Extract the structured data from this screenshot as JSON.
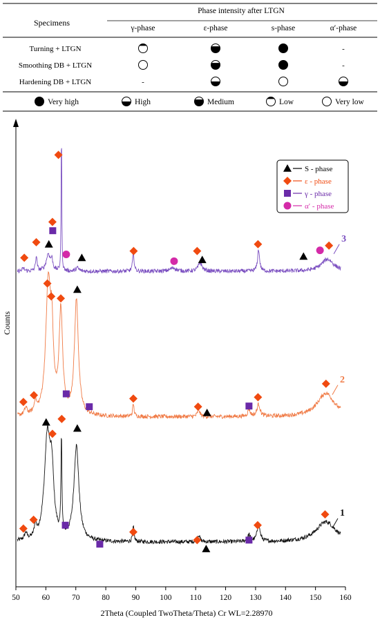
{
  "table": {
    "specimens_header": "Specimens",
    "group_header": "Phase intensity after LTGN",
    "phase_headers": [
      "γ-phase",
      "ε-phase",
      "s-phase",
      "α′-phase"
    ],
    "rows": [
      {
        "label": "Turning + LTGN",
        "cells": [
          "low",
          "medium",
          "very-high",
          "-"
        ]
      },
      {
        "label": "Smoothing DB + LTGN",
        "cells": [
          "very-low",
          "medium",
          "very-high",
          "-"
        ]
      },
      {
        "label": "Hardening DB + LTGN",
        "cells": [
          "-",
          "high",
          "very-low",
          "high"
        ]
      }
    ],
    "legend": [
      {
        "level": "very-high",
        "label": "Very high"
      },
      {
        "level": "high",
        "label": "High"
      },
      {
        "level": "medium",
        "label": "Medium"
      },
      {
        "level": "low",
        "label": "Low"
      },
      {
        "level": "very-low",
        "label": "Very low"
      }
    ]
  },
  "colors": {
    "s_phase": "#000000",
    "epsilon": "#f04a10",
    "gamma": "#6a2aa8",
    "alpha": "#d42aa8",
    "curve1": "#111111",
    "curve2": "#f07a45",
    "curve3": "#7a4ec0"
  },
  "chart_data": {
    "type": "line",
    "xlabel": "2Theta (Coupled TwoTheta/Theta) Cr WL=2.28970",
    "ylabel": "Counts",
    "xlim": [
      50,
      160
    ],
    "xticks": [
      50,
      60,
      70,
      80,
      90,
      100,
      110,
      120,
      130,
      140,
      150,
      160
    ],
    "legend": [
      {
        "marker": "triangle",
        "label": "S - phase",
        "color": "#000000"
      },
      {
        "marker": "diamond",
        "label": "ε - phase",
        "color": "#f04a10"
      },
      {
        "marker": "square",
        "label": "γ - phase",
        "color": "#6a2aa8"
      },
      {
        "marker": "circle",
        "label": "α′ - phase",
        "color": "#d42aa8"
      }
    ],
    "series": [
      {
        "name": "1",
        "color": "#111111",
        "baseline": 15,
        "noise": 3,
        "peaks": [
          {
            "x": 53.3,
            "h": 10,
            "w": 0.5
          },
          {
            "x": 56.5,
            "h": 18,
            "w": 0.4
          },
          {
            "x": 60.5,
            "h": 150,
            "w": 1.2
          },
          {
            "x": 62.0,
            "h": 80,
            "w": 0.8
          },
          {
            "x": 65.2,
            "h": 150,
            "w": 0.18
          },
          {
            "x": 70.2,
            "h": 140,
            "w": 1.0
          },
          {
            "x": 89.2,
            "h": 22,
            "w": 0.3
          },
          {
            "x": 111.0,
            "h": 10,
            "w": 0.5
          },
          {
            "x": 127.8,
            "h": 10,
            "w": 0.5
          },
          {
            "x": 131.0,
            "h": 25,
            "w": 0.6
          },
          {
            "x": 153.5,
            "h": 30,
            "w": 4.0
          }
        ],
        "markers": [
          {
            "type": "diamond",
            "x": 52.5,
            "y": 35
          },
          {
            "type": "diamond",
            "x": 55.9,
            "y": 48
          },
          {
            "type": "triangle",
            "x": 60.1,
            "y": 192
          },
          {
            "type": "diamond",
            "x": 62.2,
            "y": 175
          },
          {
            "type": "diamond",
            "x": 65.3,
            "y": 197
          },
          {
            "type": "triangle",
            "x": 70.5,
            "y": 183
          },
          {
            "type": "square",
            "x": 66.5,
            "y": 40
          },
          {
            "type": "square",
            "x": 78.0,
            "y": 12
          },
          {
            "type": "diamond",
            "x": 89.2,
            "y": 30
          },
          {
            "type": "diamond",
            "x": 110.5,
            "y": 18
          },
          {
            "type": "triangle",
            "x": 113.5,
            "y": 5
          },
          {
            "type": "square",
            "x": 127.8,
            "y": 18
          },
          {
            "type": "diamond",
            "x": 130.7,
            "y": 40
          },
          {
            "type": "diamond",
            "x": 153.2,
            "y": 56
          }
        ],
        "label": {
          "text": "1",
          "x": 157.0,
          "y": 50
        }
      },
      {
        "name": "2",
        "color": "#f07a45",
        "baseline": 200,
        "noise": 3,
        "peaks": [
          {
            "x": 53.3,
            "h": 10,
            "w": 0.5
          },
          {
            "x": 56.5,
            "h": 18,
            "w": 0.4
          },
          {
            "x": 60.8,
            "h": 190,
            "w": 1.0
          },
          {
            "x": 62.0,
            "h": 90,
            "w": 0.6
          },
          {
            "x": 65.0,
            "h": 150,
            "w": 0.7
          },
          {
            "x": 70.2,
            "h": 170,
            "w": 0.8
          },
          {
            "x": 89.2,
            "h": 18,
            "w": 0.3
          },
          {
            "x": 111.0,
            "h": 10,
            "w": 0.5
          },
          {
            "x": 127.8,
            "h": 10,
            "w": 0.5
          },
          {
            "x": 131.0,
            "h": 18,
            "w": 0.6
          },
          {
            "x": 153.5,
            "h": 35,
            "w": 3.5
          }
        ],
        "markers": [
          {
            "type": "diamond",
            "x": 52.5,
            "y": 222
          },
          {
            "type": "diamond",
            "x": 56.0,
            "y": 232
          },
          {
            "type": "diamond",
            "x": 60.5,
            "y": 397
          },
          {
            "type": "diamond",
            "x": 61.8,
            "y": 378
          },
          {
            "type": "diamond",
            "x": 65.0,
            "y": 375
          },
          {
            "type": "triangle",
            "x": 70.5,
            "y": 388
          },
          {
            "type": "square",
            "x": 66.8,
            "y": 234
          },
          {
            "type": "square",
            "x": 74.5,
            "y": 215
          },
          {
            "type": "diamond",
            "x": 89.2,
            "y": 227
          },
          {
            "type": "diamond",
            "x": 110.8,
            "y": 215
          },
          {
            "type": "triangle",
            "x": 113.8,
            "y": 206
          },
          {
            "type": "square",
            "x": 127.8,
            "y": 216
          },
          {
            "type": "diamond",
            "x": 130.8,
            "y": 229
          },
          {
            "type": "diamond",
            "x": 153.5,
            "y": 249
          }
        ],
        "label": {
          "text": "2",
          "x": 157.0,
          "y": 247
        }
      },
      {
        "name": "3",
        "color": "#7a4ec0",
        "baseline": 415,
        "noise": 3,
        "peaks": [
          {
            "x": 52.5,
            "h": 4,
            "w": 0.5
          },
          {
            "x": 56.8,
            "h": 22,
            "w": 0.3
          },
          {
            "x": 60.8,
            "h": 25,
            "w": 0.8
          },
          {
            "x": 62.0,
            "h": 14,
            "w": 0.4
          },
          {
            "x": 65.2,
            "h": 225,
            "w": 0.12
          },
          {
            "x": 70.5,
            "h": 5,
            "w": 0.6
          },
          {
            "x": 89.2,
            "h": 28,
            "w": 0.3
          },
          {
            "x": 102.5,
            "h": 5,
            "w": 1.2
          },
          {
            "x": 111.5,
            "h": 12,
            "w": 0.8
          },
          {
            "x": 131.0,
            "h": 32,
            "w": 0.4
          },
          {
            "x": 154.0,
            "h": 18,
            "w": 2.5
          }
        ],
        "markers": [
          {
            "type": "diamond",
            "x": 52.8,
            "y": 435
          },
          {
            "type": "diamond",
            "x": 56.8,
            "y": 458
          },
          {
            "type": "triangle",
            "x": 61.0,
            "y": 455
          },
          {
            "type": "square",
            "x": 62.3,
            "y": 475
          },
          {
            "type": "diamond",
            "x": 62.2,
            "y": 488
          },
          {
            "type": "diamond",
            "x": 64.2,
            "y": 587
          },
          {
            "type": "circle",
            "x": 66.8,
            "y": 440
          },
          {
            "type": "triangle",
            "x": 72.0,
            "y": 435
          },
          {
            "type": "diamond",
            "x": 89.3,
            "y": 445
          },
          {
            "type": "circle",
            "x": 102.8,
            "y": 430
          },
          {
            "type": "diamond",
            "x": 110.5,
            "y": 445
          },
          {
            "type": "triangle",
            "x": 112.2,
            "y": 432
          },
          {
            "type": "diamond",
            "x": 130.8,
            "y": 455
          },
          {
            "type": "triangle",
            "x": 146.0,
            "y": 437
          },
          {
            "type": "circle",
            "x": 151.5,
            "y": 446
          },
          {
            "type": "diamond",
            "x": 154.5,
            "y": 453
          }
        ],
        "label": {
          "text": "3",
          "x": 157.5,
          "y": 455
        }
      }
    ]
  }
}
